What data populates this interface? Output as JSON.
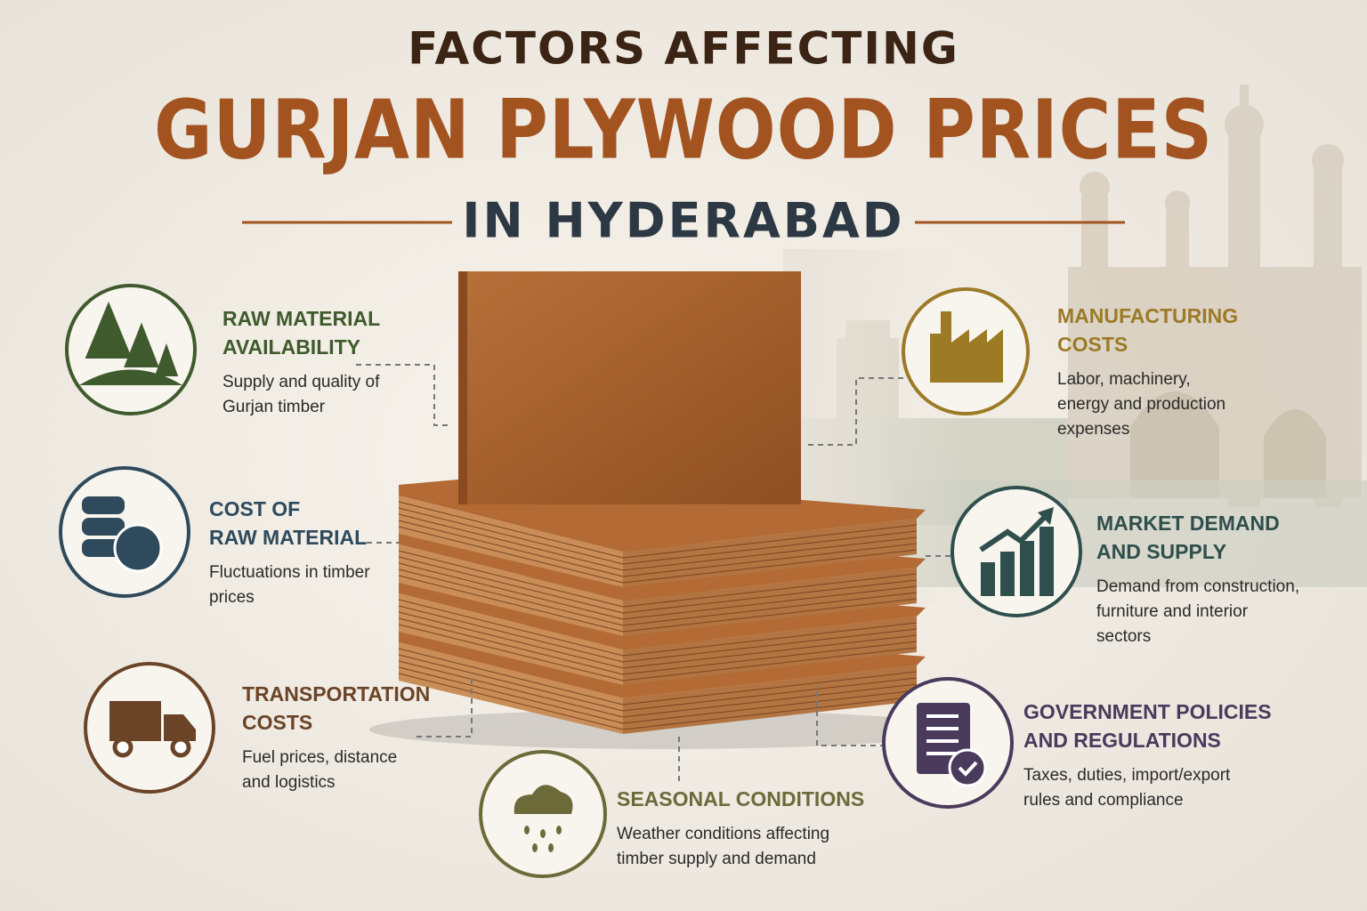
{
  "header": {
    "line1": "FACTORS AFFECTING",
    "line2": "GURJAN PLYWOOD PRICES",
    "line3": "IN HYDERABAD"
  },
  "factors": [
    {
      "title_lines": [
        "RAW MATERIAL",
        "AVAILABILITY"
      ],
      "description_lines": [
        "Supply and quality of",
        "Gurjan timber"
      ]
    },
    {
      "title_lines": [
        "COST OF",
        "RAW MATERIAL"
      ],
      "description_lines": [
        "Fluctuations in timber",
        "prices"
      ]
    },
    {
      "title_lines": [
        "TRANSPORTATION",
        "COSTS"
      ],
      "description_lines": [
        "Fuel prices, distance",
        "and logistics"
      ]
    },
    {
      "title_lines": [
        "SEASONAL CONDITIONS"
      ],
      "description_lines": [
        "Weather conditions affecting",
        "timber supply and demand"
      ]
    },
    {
      "title_lines": [
        "GOVERNMENT POLICIES",
        "AND REGULATIONS"
      ],
      "description_lines": [
        "Taxes, duties, import/export",
        "rules and compliance"
      ]
    },
    {
      "title_lines": [
        "MARKET DEMAND",
        "AND SUPPLY"
      ],
      "description_lines": [
        "Demand from construction,",
        "furniture and interior",
        "sectors"
      ]
    },
    {
      "title_lines": [
        "MANUFACTURING",
        "COSTS"
      ],
      "description_lines": [
        "Labor, machinery,",
        "energy and production",
        "expenses"
      ]
    }
  ]
}
